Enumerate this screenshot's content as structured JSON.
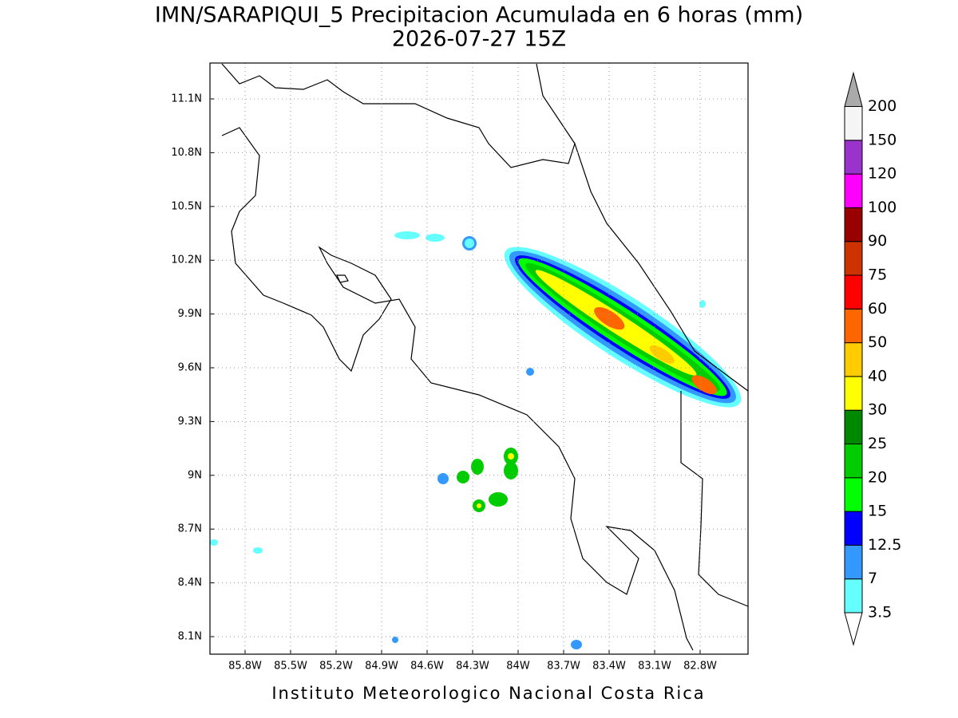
{
  "header": {
    "title": "IMN/SARAPIQUI_5 Precipitacion Acumulada en 6 horas (mm)",
    "subtitle": "2026-07-27 15Z"
  },
  "map": {
    "lat_ticks": [
      "11.1N",
      "10.8N",
      "10.5N",
      "10.2N",
      "9.9N",
      "9.6N",
      "9.3N",
      "9N",
      "8.7N",
      "8.4N",
      "8.1N"
    ],
    "lon_ticks": [
      "85.8W",
      "85.5W",
      "85.2W",
      "84.9W",
      "84.6W",
      "84.3W",
      "84W",
      "83.7W",
      "83.4W",
      "83.1W",
      "82.8W"
    ],
    "grid": true
  },
  "legend": {
    "levels": [
      3.5,
      7,
      12.5,
      15,
      20,
      25,
      30,
      40,
      50,
      60,
      75,
      90,
      100,
      120,
      150,
      200
    ],
    "colors": [
      "#ffffff",
      "#66ffff",
      "#3399ff",
      "#0000ff",
      "#00ff00",
      "#00cc00",
      "#008800",
      "#ffff00",
      "#ffcc00",
      "#ff6600",
      "#ff0000",
      "#cc3300",
      "#990000",
      "#ff00ff",
      "#9933cc",
      "#f5f5f5",
      "#aaaaaa"
    ]
  },
  "footer": "Instituto Meteorologico Nacional Costa Rica"
}
